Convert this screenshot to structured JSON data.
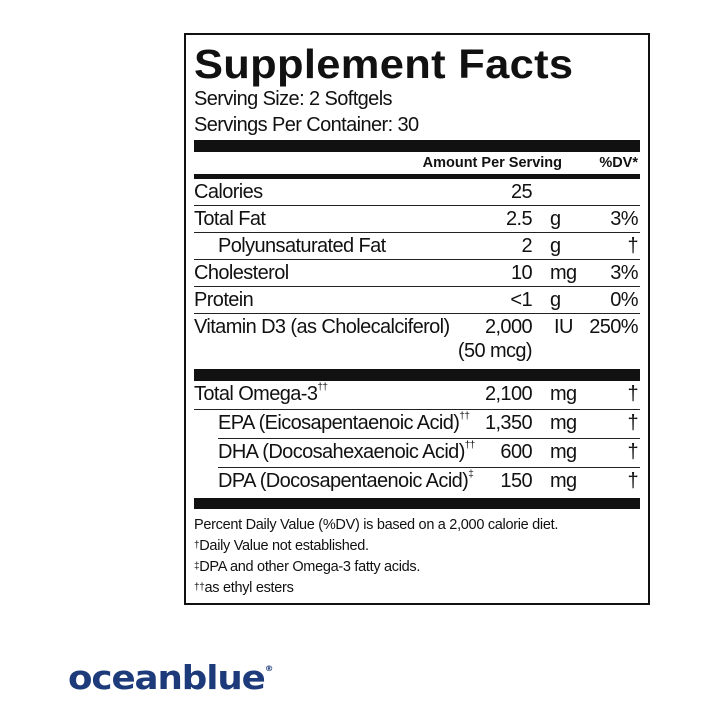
{
  "panel": {
    "title": "Supplement Facts",
    "serving_size": "Serving Size: 2 Softgels",
    "servings_per_container": "Servings Per Container: 30",
    "header": {
      "amount": "Amount Per Serving",
      "dv": "%DV*"
    },
    "rows": [
      {
        "name": "Calories",
        "amount": "25",
        "unit": "",
        "dv": ""
      },
      {
        "name": "Total Fat",
        "amount": "2.5",
        "unit": "g",
        "dv": "3%"
      },
      {
        "name": "Polyunsaturated Fat",
        "amount": "2",
        "unit": "g",
        "dv": "†"
      },
      {
        "name": "Cholesterol",
        "amount": "10",
        "unit": "mg",
        "dv": "3%"
      },
      {
        "name": "Protein",
        "amount": "<1",
        "unit": "g",
        "dv": "0%"
      },
      {
        "name": "Vitamin D3 (as Cholecalciferol)",
        "amount": "2,000",
        "amount2": "(50 mcg)",
        "unit": "IU",
        "dv": "250%"
      }
    ],
    "omega_rows": [
      {
        "name": "Total Omega-3",
        "mark": "††",
        "amount": "2,100",
        "unit": "mg",
        "dv": "†"
      },
      {
        "name": "EPA (Eicosapentaenoic Acid)",
        "mark": "††",
        "amount": "1,350",
        "unit": "mg",
        "dv": "†"
      },
      {
        "name": "DHA (Docosahexaenoic Acid)",
        "mark": "††",
        "amount": "600",
        "unit": "mg",
        "dv": "†"
      },
      {
        "name": "DPA (Docosapentaenoic Acid)",
        "mark": "‡",
        "amount": "150",
        "unit": "mg",
        "dv": "†"
      }
    ],
    "footnotes": [
      {
        "mark": "",
        "text": "Percent Daily Value (%DV) is based on a 2,000 calorie diet."
      },
      {
        "mark": "†",
        "text": "Daily Value not established."
      },
      {
        "mark": "‡",
        "text": "DPA and other Omega-3 fatty acids."
      },
      {
        "mark": "††",
        "text": "as ethyl esters"
      }
    ]
  },
  "brand": {
    "name": "oceanblue",
    "registered": "®",
    "color": "#1d3a7a"
  }
}
